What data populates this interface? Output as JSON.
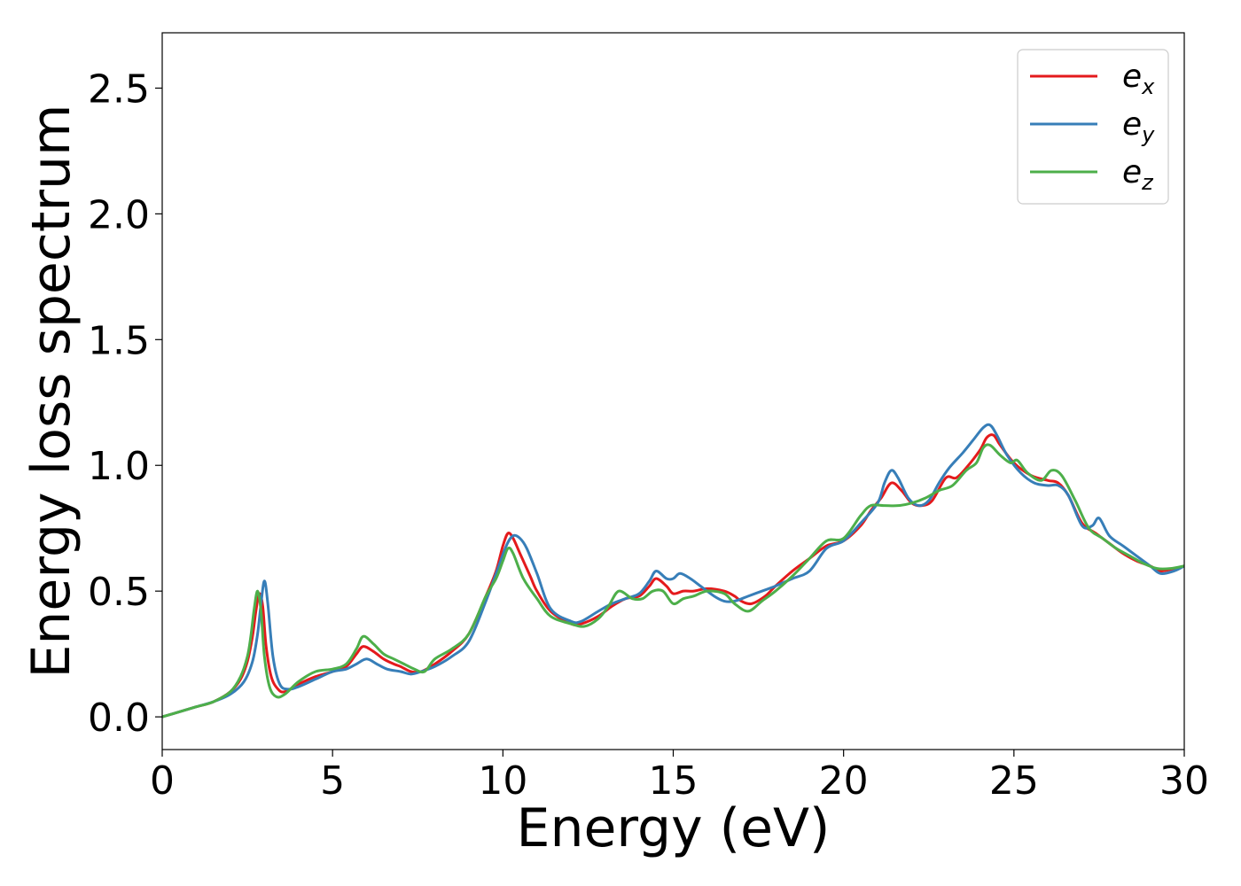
{
  "chart_data": {
    "type": "line",
    "title": "",
    "xlabel": "Energy (eV)",
    "ylabel": "Energy loss spectrum",
    "xlim": [
      0,
      30
    ],
    "ylim": [
      -0.13,
      2.72
    ],
    "xticks": [
      "0",
      "5",
      "10",
      "15",
      "20",
      "25",
      "30"
    ],
    "yticks": [
      "0.0",
      "0.5",
      "1.0",
      "1.5",
      "2.0",
      "2.5"
    ],
    "grid": false,
    "legend_position": "top-right",
    "series": [
      {
        "name": "e",
        "subscript": "x",
        "color": "#e41a1c",
        "x": [
          0,
          0.5,
          1,
          1.5,
          2,
          2.3,
          2.5,
          2.65,
          2.75,
          2.85,
          2.95,
          3.05,
          3.2,
          3.4,
          3.6,
          4,
          4.5,
          5,
          5.4,
          5.7,
          5.9,
          6.2,
          6.5,
          6.8,
          7,
          7.3,
          7.6,
          8,
          8.5,
          9,
          9.5,
          9.8,
          10,
          10.15,
          10.3,
          10.5,
          10.8,
          11,
          11.4,
          12,
          12.3,
          12.8,
          13.2,
          13.6,
          14,
          14.3,
          14.5,
          14.8,
          15,
          15.3,
          15.6,
          16,
          16.5,
          16.8,
          17,
          17.3,
          17.7,
          18,
          18.5,
          19,
          19.5,
          20,
          20.5,
          20.8,
          21.1,
          21.4,
          21.7,
          22,
          22.3,
          22.6,
          23,
          23.3,
          23.6,
          24,
          24.2,
          24.4,
          24.6,
          25,
          25.5,
          26,
          26.3,
          26.6,
          27,
          27.4,
          27.8,
          28.2,
          28.6,
          29,
          29.3,
          29.7,
          30
        ],
        "y": [
          0,
          0.02,
          0.04,
          0.06,
          0.1,
          0.15,
          0.22,
          0.32,
          0.42,
          0.49,
          0.44,
          0.28,
          0.16,
          0.11,
          0.1,
          0.13,
          0.16,
          0.18,
          0.2,
          0.25,
          0.28,
          0.26,
          0.23,
          0.21,
          0.2,
          0.18,
          0.18,
          0.21,
          0.26,
          0.33,
          0.48,
          0.58,
          0.68,
          0.73,
          0.71,
          0.65,
          0.56,
          0.5,
          0.42,
          0.37,
          0.37,
          0.4,
          0.44,
          0.47,
          0.48,
          0.52,
          0.55,
          0.52,
          0.49,
          0.5,
          0.5,
          0.51,
          0.5,
          0.48,
          0.46,
          0.45,
          0.48,
          0.52,
          0.58,
          0.63,
          0.68,
          0.7,
          0.76,
          0.82,
          0.87,
          0.93,
          0.9,
          0.85,
          0.84,
          0.86,
          0.95,
          0.95,
          0.99,
          1.06,
          1.11,
          1.12,
          1.08,
          1.01,
          0.96,
          0.94,
          0.93,
          0.88,
          0.77,
          0.73,
          0.69,
          0.65,
          0.62,
          0.6,
          0.58,
          0.59,
          0.6
        ]
      },
      {
        "name": "e",
        "subscript": "y",
        "color": "#377eb8",
        "x": [
          0,
          0.5,
          1,
          1.5,
          2,
          2.4,
          2.65,
          2.8,
          2.9,
          3.0,
          3.1,
          3.25,
          3.45,
          3.7,
          4,
          4.5,
          5,
          5.4,
          5.7,
          6.0,
          6.3,
          6.6,
          7,
          7.3,
          7.6,
          8,
          8.5,
          9,
          9.5,
          9.8,
          10.1,
          10.3,
          10.5,
          10.7,
          11,
          11.4,
          12,
          12.3,
          12.8,
          13.2,
          13.6,
          14,
          14.3,
          14.5,
          14.8,
          15,
          15.2,
          15.5,
          15.8,
          16.2,
          16.5,
          16.8,
          17.2,
          17.6,
          18,
          18.5,
          19,
          19.5,
          20,
          20.5,
          21,
          21.2,
          21.4,
          21.6,
          21.9,
          22.2,
          22.5,
          22.8,
          23.1,
          23.5,
          23.8,
          24.1,
          24.3,
          24.5,
          24.8,
          25.2,
          25.6,
          26,
          26.3,
          26.6,
          27,
          27.3,
          27.5,
          27.8,
          28.2,
          28.6,
          29,
          29.3,
          29.7,
          30
        ],
        "y": [
          0,
          0.02,
          0.04,
          0.06,
          0.09,
          0.14,
          0.22,
          0.33,
          0.45,
          0.54,
          0.45,
          0.24,
          0.13,
          0.11,
          0.12,
          0.15,
          0.18,
          0.19,
          0.21,
          0.23,
          0.21,
          0.19,
          0.18,
          0.17,
          0.18,
          0.2,
          0.24,
          0.3,
          0.46,
          0.57,
          0.68,
          0.72,
          0.71,
          0.67,
          0.57,
          0.43,
          0.38,
          0.38,
          0.42,
          0.45,
          0.47,
          0.49,
          0.54,
          0.58,
          0.55,
          0.55,
          0.57,
          0.55,
          0.52,
          0.48,
          0.46,
          0.46,
          0.48,
          0.5,
          0.52,
          0.55,
          0.58,
          0.67,
          0.7,
          0.77,
          0.85,
          0.93,
          0.98,
          0.95,
          0.87,
          0.84,
          0.86,
          0.93,
          0.99,
          1.05,
          1.1,
          1.15,
          1.16,
          1.12,
          1.04,
          0.97,
          0.93,
          0.92,
          0.92,
          0.88,
          0.76,
          0.76,
          0.79,
          0.72,
          0.68,
          0.64,
          0.6,
          0.57,
          0.58,
          0.6
        ]
      },
      {
        "name": "e",
        "subscript": "z",
        "color": "#4daf4a",
        "x": [
          0,
          0.5,
          1,
          1.5,
          2,
          2.3,
          2.5,
          2.6,
          2.7,
          2.8,
          2.9,
          3.0,
          3.15,
          3.35,
          3.6,
          4,
          4.5,
          5,
          5.4,
          5.7,
          5.9,
          6.2,
          6.5,
          6.8,
          7.1,
          7.4,
          7.7,
          8,
          8.5,
          9,
          9.5,
          9.8,
          10,
          10.15,
          10.3,
          10.6,
          11,
          11.4,
          12,
          12.4,
          12.8,
          13.1,
          13.4,
          13.8,
          14.1,
          14.4,
          14.7,
          15,
          15.3,
          15.6,
          16,
          16.5,
          16.8,
          17.2,
          17.6,
          18,
          18.5,
          19,
          19.5,
          20,
          20.5,
          20.8,
          21.2,
          21.6,
          22,
          22.4,
          22.8,
          23.2,
          23.6,
          23.9,
          24.1,
          24.3,
          24.6,
          24.9,
          25.1,
          25.4,
          25.8,
          26.1,
          26.4,
          26.8,
          27.2,
          27.6,
          28,
          28.4,
          28.8,
          29.2,
          29.6,
          30
        ],
        "y": [
          0,
          0.02,
          0.04,
          0.06,
          0.1,
          0.16,
          0.24,
          0.32,
          0.43,
          0.5,
          0.42,
          0.24,
          0.12,
          0.08,
          0.09,
          0.14,
          0.18,
          0.19,
          0.21,
          0.27,
          0.32,
          0.29,
          0.25,
          0.23,
          0.21,
          0.19,
          0.18,
          0.23,
          0.27,
          0.33,
          0.48,
          0.55,
          0.62,
          0.67,
          0.65,
          0.55,
          0.47,
          0.4,
          0.37,
          0.36,
          0.39,
          0.44,
          0.5,
          0.47,
          0.47,
          0.5,
          0.5,
          0.45,
          0.47,
          0.48,
          0.5,
          0.49,
          0.45,
          0.42,
          0.46,
          0.5,
          0.56,
          0.63,
          0.7,
          0.71,
          0.8,
          0.84,
          0.84,
          0.84,
          0.85,
          0.87,
          0.9,
          0.92,
          0.98,
          1.01,
          1.07,
          1.08,
          1.04,
          1.01,
          1.02,
          0.97,
          0.94,
          0.98,
          0.96,
          0.86,
          0.75,
          0.71,
          0.67,
          0.64,
          0.61,
          0.59,
          0.59,
          0.6
        ]
      }
    ]
  }
}
